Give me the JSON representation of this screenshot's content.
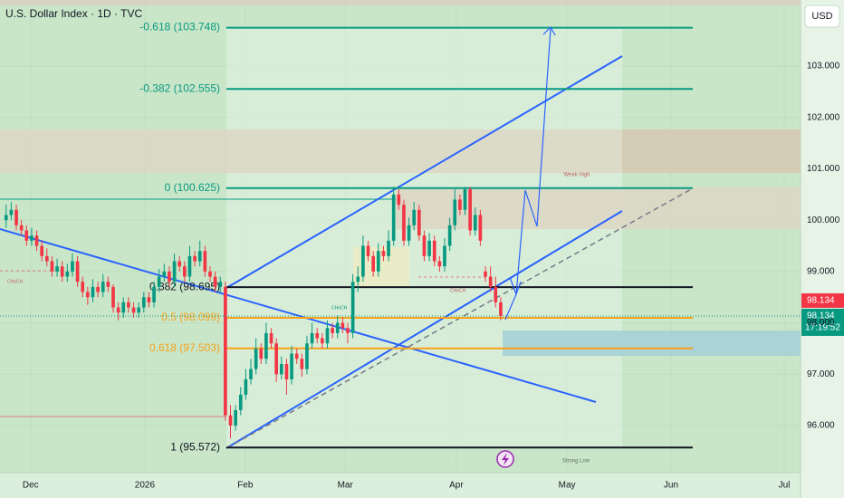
{
  "chart_data": {
    "type": "candlestick",
    "title": "U.S. Dollar Index · 1D · TVC",
    "currency": "USD",
    "up_color": "#089981",
    "down_color": "#f23645",
    "ylim": [
      95.083,
      104.287
    ],
    "yticks": [
      {
        "value": 96,
        "label": "96.000"
      },
      {
        "value": 97,
        "label": "97.000"
      },
      {
        "value": 98,
        "label": "98.000"
      },
      {
        "value": 99,
        "label": "99.000"
      },
      {
        "value": 100,
        "label": "100.000"
      },
      {
        "value": 101,
        "label": "101.000"
      },
      {
        "value": 102,
        "label": "102.000"
      },
      {
        "value": 103,
        "label": "103.000"
      }
    ],
    "xlim": [
      -1.2,
      155.8
    ],
    "xticks": [
      {
        "value": 4.8,
        "label": "Dec"
      },
      {
        "value": 27.2,
        "label": "2026"
      },
      {
        "value": 46.9,
        "label": "Feb"
      },
      {
        "value": 66.5,
        "label": "Mar"
      },
      {
        "value": 88.3,
        "label": "Apr"
      },
      {
        "value": 110,
        "label": "May"
      },
      {
        "value": 130.4,
        "label": "Jun"
      },
      {
        "value": 152.6,
        "label": "Jul"
      }
    ],
    "ohlc": [
      [
        100.0,
        100.3,
        99.85,
        100.1
      ],
      [
        100.1,
        100.35,
        100.0,
        100.2
      ],
      [
        100.2,
        100.3,
        99.8,
        99.9
      ],
      [
        99.9,
        100.0,
        99.7,
        99.8
      ],
      [
        99.8,
        99.9,
        99.5,
        99.6
      ],
      [
        99.6,
        99.85,
        99.5,
        99.7
      ],
      [
        99.7,
        99.8,
        99.4,
        99.5
      ],
      [
        99.5,
        99.6,
        99.2,
        99.3
      ],
      [
        99.3,
        99.45,
        99.1,
        99.2
      ],
      [
        99.2,
        99.3,
        98.9,
        99.0
      ],
      [
        99.0,
        99.25,
        98.9,
        99.1
      ],
      [
        99.1,
        99.2,
        98.8,
        98.9
      ],
      [
        98.9,
        99.15,
        98.8,
        99.0
      ],
      [
        99.0,
        99.35,
        98.9,
        99.2
      ],
      [
        99.2,
        99.3,
        98.7,
        98.8
      ],
      [
        98.8,
        98.9,
        98.5,
        98.6
      ],
      [
        98.6,
        98.7,
        98.35,
        98.5
      ],
      [
        98.5,
        98.85,
        98.4,
        98.7
      ],
      [
        98.7,
        98.8,
        98.5,
        98.6
      ],
      [
        98.6,
        98.95,
        98.5,
        98.8
      ],
      [
        98.8,
        98.9,
        98.6,
        98.7
      ],
      [
        98.7,
        98.75,
        98.2,
        98.3
      ],
      [
        98.3,
        98.4,
        98.05,
        98.2
      ],
      [
        98.2,
        98.5,
        98.1,
        98.4
      ],
      [
        98.4,
        98.5,
        98.2,
        98.3
      ],
      [
        98.3,
        98.4,
        98.1,
        98.2
      ],
      [
        98.2,
        98.4,
        98.1,
        98.3
      ],
      [
        98.3,
        98.6,
        98.2,
        98.5
      ],
      [
        98.5,
        98.6,
        98.3,
        98.4
      ],
      [
        98.4,
        98.8,
        98.3,
        98.7
      ],
      [
        98.7,
        99.05,
        98.6,
        98.9
      ],
      [
        98.9,
        99.15,
        98.8,
        99.0
      ],
      [
        99.0,
        99.1,
        98.7,
        98.8
      ],
      [
        98.8,
        99.35,
        98.7,
        99.2
      ],
      [
        99.2,
        99.3,
        99.0,
        99.1
      ],
      [
        99.1,
        99.2,
        98.8,
        98.9
      ],
      [
        98.9,
        99.5,
        98.8,
        99.3
      ],
      [
        99.3,
        99.4,
        99.1,
        99.2
      ],
      [
        99.2,
        99.6,
        99.1,
        99.4
      ],
      [
        99.4,
        99.5,
        98.9,
        99.0
      ],
      [
        99.0,
        99.1,
        98.8,
        98.9
      ],
      [
        98.9,
        99.0,
        98.6,
        98.7
      ],
      [
        98.7,
        98.9,
        98.6,
        98.8
      ],
      [
        98.7,
        98.8,
        96.1,
        96.2
      ],
      [
        96.2,
        96.4,
        95.75,
        96.0
      ],
      [
        96.0,
        96.4,
        95.9,
        96.3
      ],
      [
        96.3,
        96.75,
        96.2,
        96.6
      ],
      [
        96.6,
        97.1,
        96.5,
        96.9
      ],
      [
        96.9,
        97.3,
        96.8,
        97.1
      ],
      [
        97.1,
        97.7,
        97.0,
        97.5
      ],
      [
        97.5,
        97.6,
        97.2,
        97.3
      ],
      [
        97.3,
        98.0,
        97.2,
        97.8
      ],
      [
        97.8,
        97.9,
        97.5,
        97.6
      ],
      [
        97.6,
        97.7,
        96.85,
        97.0
      ],
      [
        97.0,
        97.35,
        96.9,
        97.2
      ],
      [
        97.2,
        97.3,
        96.6,
        96.9
      ],
      [
        96.9,
        97.55,
        96.8,
        97.4
      ],
      [
        97.4,
        97.5,
        97.2,
        97.3
      ],
      [
        97.3,
        97.4,
        96.95,
        97.1
      ],
      [
        97.1,
        97.75,
        97.0,
        97.6
      ],
      [
        97.6,
        98.0,
        97.5,
        97.8
      ],
      [
        97.8,
        97.9,
        97.6,
        97.7
      ],
      [
        97.7,
        97.8,
        97.5,
        97.6
      ],
      [
        97.6,
        98.05,
        97.5,
        97.9
      ],
      [
        97.9,
        98.0,
        97.7,
        97.8
      ],
      [
        97.8,
        98.15,
        97.7,
        98.0
      ],
      [
        98.0,
        98.1,
        97.8,
        97.9
      ],
      [
        97.9,
        98.0,
        97.6,
        97.8
      ],
      [
        97.8,
        98.95,
        97.7,
        98.8
      ],
      [
        98.8,
        99.1,
        98.6,
        98.9
      ],
      [
        98.9,
        99.7,
        98.8,
        99.5
      ],
      [
        99.5,
        99.6,
        99.2,
        99.3
      ],
      [
        99.3,
        99.4,
        98.9,
        99.0
      ],
      [
        99.0,
        99.55,
        98.9,
        99.4
      ],
      [
        99.4,
        99.5,
        99.2,
        99.3
      ],
      [
        99.3,
        99.8,
        99.2,
        99.6
      ],
      [
        99.6,
        100.65,
        99.5,
        100.5
      ],
      [
        100.5,
        100.6,
        100.2,
        100.3
      ],
      [
        100.3,
        100.4,
        99.5,
        99.6
      ],
      [
        99.6,
        100.05,
        99.5,
        99.9
      ],
      [
        99.9,
        100.35,
        99.8,
        100.2
      ],
      [
        100.2,
        100.3,
        99.6,
        99.7
      ],
      [
        99.7,
        99.8,
        99.2,
        99.3
      ],
      [
        99.3,
        99.75,
        99.2,
        99.6
      ],
      [
        99.6,
        99.7,
        99.1,
        99.2
      ],
      [
        99.2,
        99.3,
        99.0,
        99.1
      ],
      [
        99.1,
        99.65,
        99.0,
        99.5
      ],
      [
        99.5,
        100.05,
        99.4,
        99.9
      ],
      [
        99.9,
        100.6,
        99.8,
        100.4
      ],
      [
        100.4,
        100.5,
        100.1,
        100.2
      ],
      [
        100.2,
        100.65,
        100.1,
        100.6
      ],
      [
        100.6,
        100.65,
        99.7,
        99.8
      ],
      [
        99.8,
        100.25,
        99.7,
        100.1
      ],
      [
        100.1,
        100.2,
        99.5,
        99.6
      ],
      [
        99.0,
        99.1,
        98.8,
        98.9
      ],
      [
        98.9,
        99.1,
        98.6,
        98.7
      ],
      [
        98.7,
        98.9,
        98.3,
        98.4
      ],
      [
        98.4,
        98.5,
        98.05,
        98.134
      ]
    ],
    "fib_levels": [
      {
        "label": "-0.618 (103.748)",
        "value": 103.748,
        "color": "#089981"
      },
      {
        "label": "-0.382 (102.555)",
        "value": 102.555,
        "color": "#089981"
      },
      {
        "label": "0 (100.625)",
        "value": 100.625,
        "color": "#089981"
      },
      {
        "label": "0.382 (98.695)",
        "value": 98.695,
        "color": "#131722"
      },
      {
        "label": "0.5 (98.099)",
        "value": 98.099,
        "color": "#f7a21b"
      },
      {
        "label": "0.618 (97.503)",
        "value": 97.503,
        "color": "#f7a21b"
      },
      {
        "label": "1 (95.572)",
        "value": 95.572,
        "color": "#131722"
      }
    ],
    "current_price": 98.134,
    "countdown": "17:19:52",
    "annotations": [
      "Weak High",
      "Strong Low",
      "CHoCH",
      "CHoCH",
      "CHoCH"
    ]
  }
}
